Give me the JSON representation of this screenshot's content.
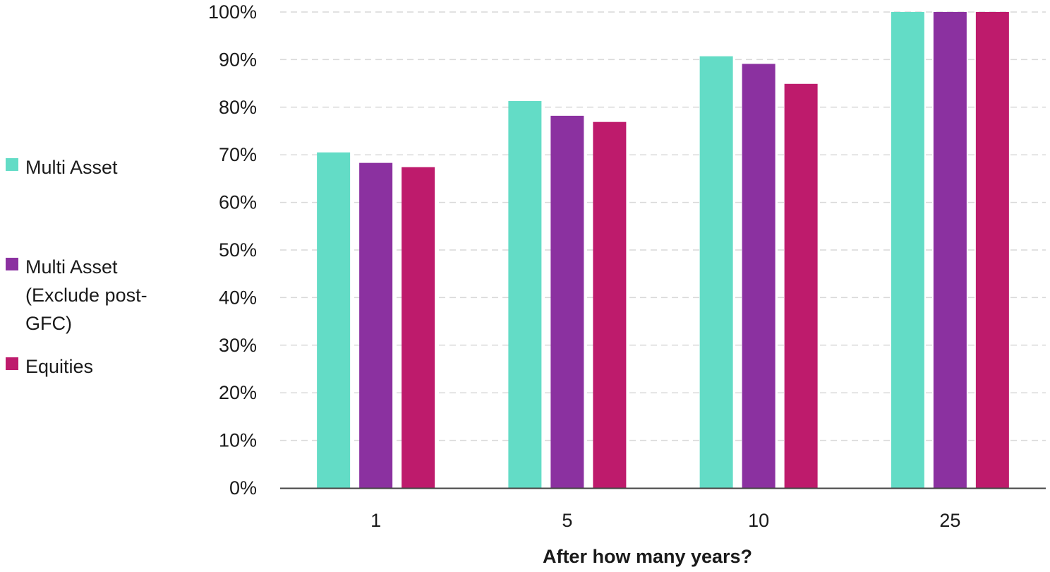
{
  "chart_data": {
    "type": "bar",
    "title": "",
    "xlabel": "After how many years?",
    "ylabel": "",
    "categories": [
      "1",
      "5",
      "10",
      "25"
    ],
    "series": [
      {
        "name": "Multi Asset",
        "color": "#63dcc6",
        "values": [
          70.5,
          81.3,
          90.7,
          100
        ]
      },
      {
        "name": "Multi Asset (Exclude post-GFC)",
        "color": "#8b31a0",
        "values": [
          68.3,
          78.2,
          89.1,
          100
        ]
      },
      {
        "name": "Equities",
        "color": "#be1b6c",
        "values": [
          67.4,
          76.9,
          84.9,
          100
        ]
      }
    ],
    "ylim": [
      0,
      100
    ],
    "yticks": [
      0,
      10,
      20,
      30,
      40,
      50,
      60,
      70,
      80,
      90,
      100
    ],
    "ytick_suffix": "%",
    "grid": "horizontal-dashed",
    "legend_position": "left"
  },
  "legend": {
    "items": [
      {
        "label": "Multi Asset",
        "color": "#63dcc6"
      },
      {
        "label": "Multi Asset (Exclude post-GFC)",
        "color": "#8b31a0"
      },
      {
        "label": "Equities",
        "color": "#be1b6c"
      }
    ]
  }
}
